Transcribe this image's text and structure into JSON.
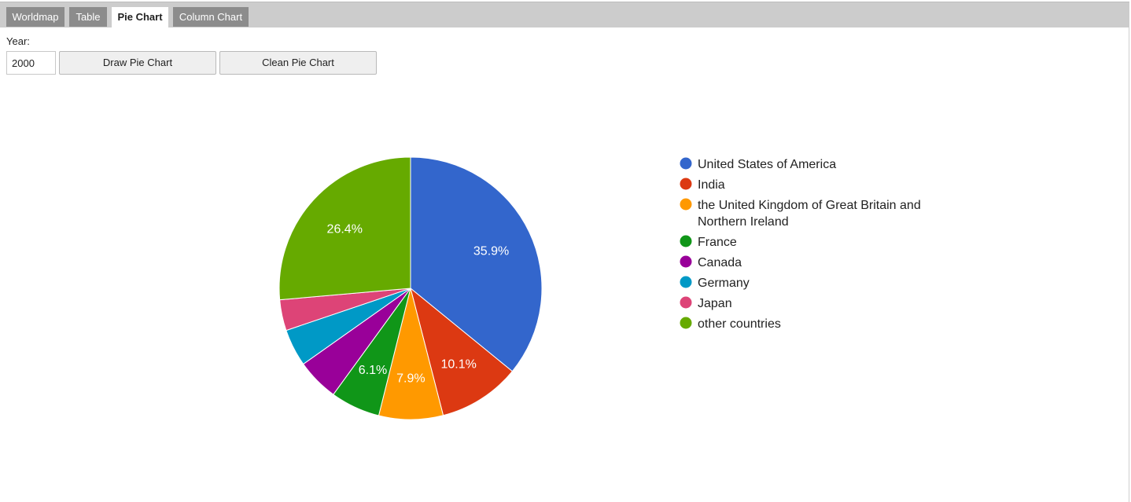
{
  "tabs": [
    {
      "label": "Worldmap",
      "active": false
    },
    {
      "label": "Table",
      "active": false
    },
    {
      "label": "Pie Chart",
      "active": true
    },
    {
      "label": "Column Chart",
      "active": false
    }
  ],
  "form": {
    "year_label": "Year:",
    "year_value": "2000",
    "draw_button": "Draw Pie Chart",
    "clean_button": "Clean Pie Chart"
  },
  "chart_data": {
    "type": "pie",
    "title": "",
    "slices": [
      {
        "label": "United States of America",
        "value": 35.9,
        "display": "35.9%",
        "color": "#3366cc"
      },
      {
        "label": "India",
        "value": 10.1,
        "display": "10.1%",
        "color": "#dc3912"
      },
      {
        "label": "the United Kingdom of Great Britain and Northern Ireland",
        "value": 7.9,
        "display": "7.9%",
        "color": "#ff9900"
      },
      {
        "label": "France",
        "value": 6.1,
        "display": "6.1%",
        "color": "#109618"
      },
      {
        "label": "Canada",
        "value": 5.2,
        "display": "",
        "color": "#990099"
      },
      {
        "label": "Germany",
        "value": 4.6,
        "display": "",
        "color": "#0099c6"
      },
      {
        "label": "Japan",
        "value": 3.8,
        "display": "",
        "color": "#dd4477"
      },
      {
        "label": "other countries",
        "value": 26.4,
        "display": "26.4%",
        "color": "#66aa00"
      }
    ],
    "legend_position": "right"
  }
}
